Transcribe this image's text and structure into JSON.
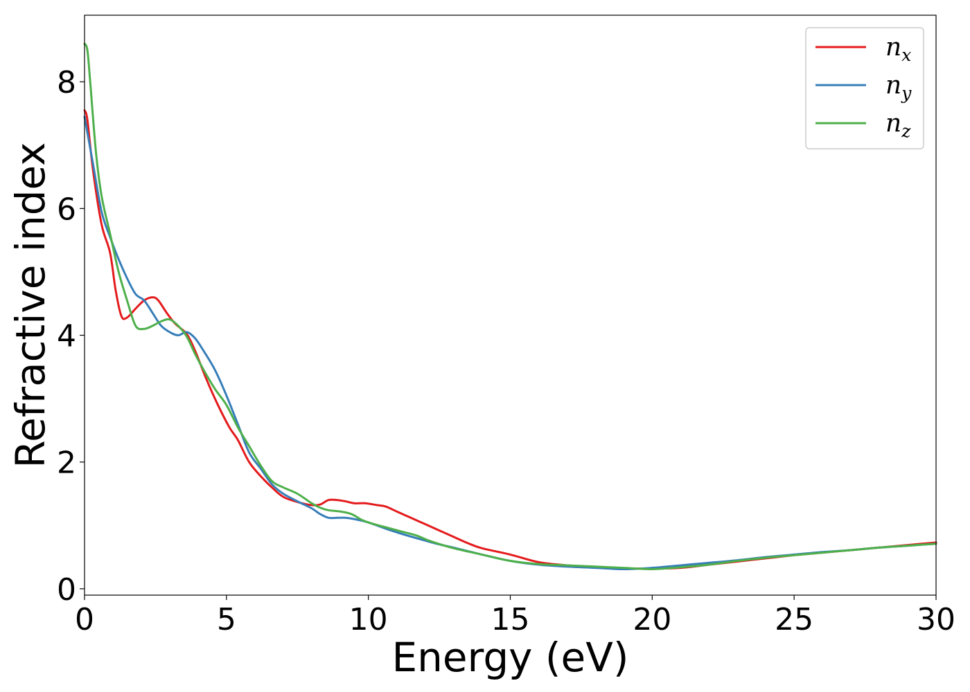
{
  "chart_data": {
    "type": "line",
    "title": "",
    "xlabel": "Energy (eV)",
    "ylabel": "Refractive index",
    "xlim": [
      0,
      30
    ],
    "ylim": [
      -0.1,
      9.05
    ],
    "xticks": [
      0,
      5,
      10,
      15,
      20,
      25,
      30
    ],
    "yticks": [
      0,
      2,
      4,
      6,
      8
    ],
    "grid": false,
    "legend_position": "top-right",
    "series": [
      {
        "name": "n_x",
        "label_base": "n",
        "label_sub": "x",
        "color": "#e41a1c",
        "x": [
          0,
          0.1,
          0.3,
          0.6,
          0.9,
          1.1,
          1.3,
          1.5,
          1.8,
          2.1,
          2.4,
          2.6,
          2.9,
          3.2,
          3.6,
          3.9,
          4.3,
          4.7,
          5.1,
          5.4,
          5.8,
          6.2,
          6.6,
          7.0,
          7.5,
          8.0,
          8.3,
          8.6,
          8.9,
          9.2,
          9.5,
          9.9,
          10.3,
          10.6,
          11.0,
          11.5,
          12.0,
          12.5,
          13.0,
          13.5,
          14.0,
          15.0,
          16.0,
          17.0,
          18.0,
          19.0,
          20.0,
          21.0,
          22.0,
          23.0,
          24.0,
          25.0,
          26.0,
          27.0,
          28.0,
          29.0,
          30.0
        ],
        "y": [
          7.55,
          7.4,
          6.6,
          5.75,
          5.3,
          4.7,
          4.3,
          4.28,
          4.42,
          4.55,
          4.6,
          4.55,
          4.35,
          4.18,
          4.02,
          3.75,
          3.3,
          2.9,
          2.55,
          2.35,
          2.0,
          1.78,
          1.6,
          1.45,
          1.37,
          1.32,
          1.33,
          1.4,
          1.4,
          1.38,
          1.35,
          1.35,
          1.32,
          1.3,
          1.22,
          1.12,
          1.02,
          0.92,
          0.82,
          0.72,
          0.64,
          0.54,
          0.42,
          0.37,
          0.34,
          0.32,
          0.32,
          0.33,
          0.38,
          0.43,
          0.48,
          0.53,
          0.57,
          0.61,
          0.65,
          0.69,
          0.73
        ]
      },
      {
        "name": "n_y",
        "label_base": "n",
        "label_sub": "y",
        "color": "#377eb8",
        "x": [
          0,
          0.1,
          0.3,
          0.6,
          0.9,
          1.2,
          1.5,
          1.8,
          2.1,
          2.4,
          2.7,
          3.0,
          3.3,
          3.6,
          3.9,
          4.2,
          4.6,
          5.0,
          5.4,
          5.8,
          6.2,
          6.6,
          7.0,
          7.5,
          8.0,
          8.3,
          8.6,
          8.9,
          9.2,
          9.5,
          9.9,
          10.3,
          10.8,
          11.3,
          12.0,
          12.5,
          13.0,
          14.0,
          15.0,
          16.0,
          17.0,
          18.0,
          19.0,
          20.0,
          21.0,
          22.0,
          23.0,
          24.0,
          25.0,
          26.0,
          27.0,
          28.0,
          29.0,
          30.0
        ],
        "y": [
          7.45,
          7.2,
          6.7,
          5.95,
          5.55,
          5.2,
          4.9,
          4.65,
          4.55,
          4.35,
          4.15,
          4.05,
          4.0,
          4.05,
          3.95,
          3.75,
          3.45,
          3.05,
          2.6,
          2.15,
          1.9,
          1.65,
          1.5,
          1.38,
          1.27,
          1.18,
          1.12,
          1.12,
          1.12,
          1.1,
          1.06,
          1.0,
          0.92,
          0.85,
          0.76,
          0.7,
          0.65,
          0.54,
          0.44,
          0.38,
          0.35,
          0.33,
          0.31,
          0.33,
          0.37,
          0.41,
          0.45,
          0.5,
          0.54,
          0.58,
          0.61,
          0.65,
          0.68,
          0.71
        ]
      },
      {
        "name": "n_z",
        "label_base": "n",
        "label_sub": "z",
        "color": "#4daf4a",
        "x": [
          0,
          0.1,
          0.2,
          0.4,
          0.6,
          0.9,
          1.2,
          1.5,
          1.8,
          2.1,
          2.4,
          2.7,
          3.0,
          3.3,
          3.6,
          3.9,
          4.2,
          4.6,
          5.0,
          5.4,
          5.8,
          6.2,
          6.6,
          7.0,
          7.5,
          8.0,
          8.3,
          8.6,
          9.0,
          9.4,
          9.8,
          10.2,
          10.7,
          11.2,
          11.7,
          12.2,
          13.0,
          14.0,
          15.0,
          16.0,
          17.0,
          18.0,
          19.0,
          20.0,
          21.0,
          22.0,
          23.0,
          24.0,
          25.0,
          26.0,
          27.0,
          28.0,
          29.0,
          30.0
        ],
        "y": [
          8.6,
          8.5,
          8.0,
          6.9,
          6.2,
          5.6,
          5.0,
          4.55,
          4.15,
          4.1,
          4.15,
          4.22,
          4.25,
          4.15,
          3.98,
          3.7,
          3.45,
          3.15,
          2.9,
          2.55,
          2.25,
          1.95,
          1.7,
          1.6,
          1.5,
          1.35,
          1.28,
          1.24,
          1.22,
          1.18,
          1.08,
          1.02,
          0.96,
          0.9,
          0.84,
          0.75,
          0.64,
          0.54,
          0.44,
          0.39,
          0.37,
          0.35,
          0.33,
          0.31,
          0.34,
          0.38,
          0.44,
          0.49,
          0.53,
          0.57,
          0.61,
          0.65,
          0.68,
          0.71
        ]
      }
    ]
  }
}
